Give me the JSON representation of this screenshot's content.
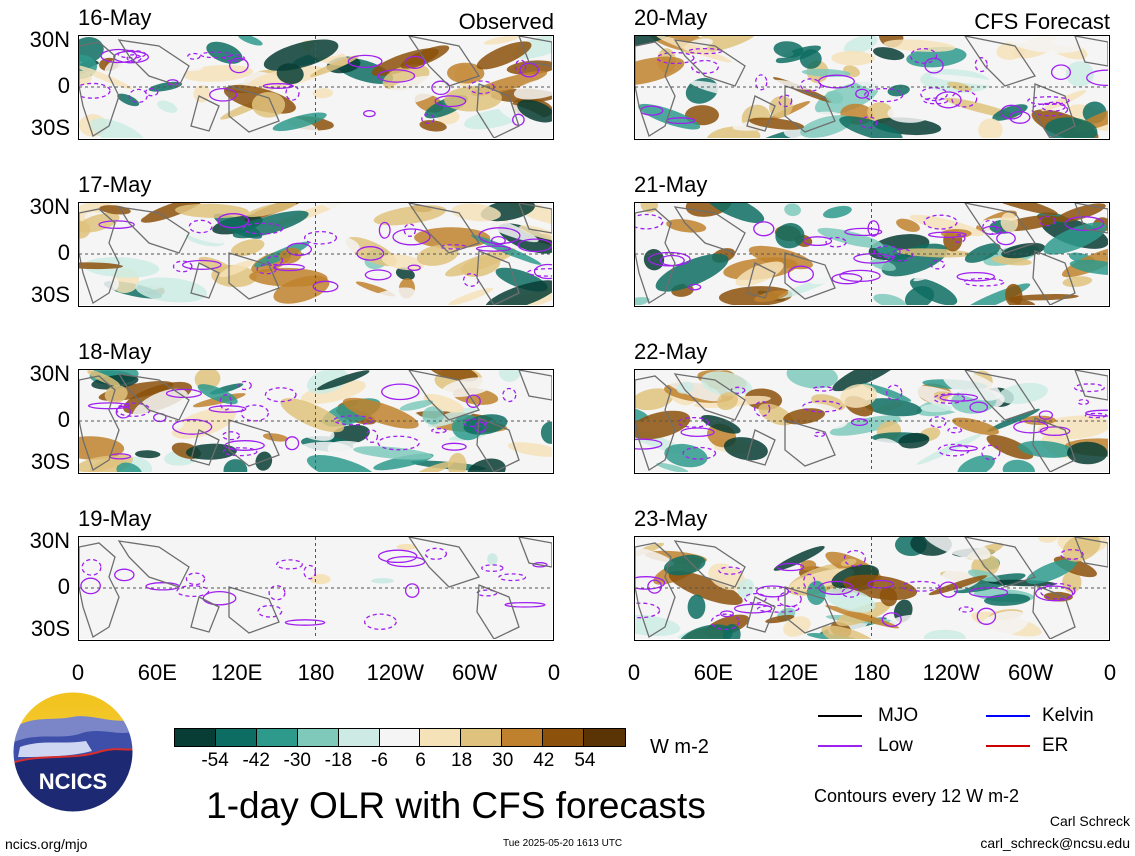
{
  "chart_data": {
    "type": "heatmap",
    "title": "1-day OLR with CFS forecasts",
    "colorbar": {
      "unit": "W m-2",
      "tick_labels": [
        "-54",
        "-42",
        "-30",
        "-18",
        "-6",
        "6",
        "18",
        "30",
        "42",
        "54"
      ],
      "colors": [
        "#073d35",
        "#0e6d62",
        "#2e9a8c",
        "#7fc9bb",
        "#cdebe4",
        "#f5f5f5",
        "#f6e2b8",
        "#dfc27d",
        "#bf812d",
        "#8c510a",
        "#5a3405"
      ]
    },
    "x_tick_labels": [
      "0",
      "60E",
      "120E",
      "180",
      "120W",
      "60W",
      "0"
    ],
    "y_tick_labels": [
      "30N",
      "0",
      "30S"
    ],
    "left_column_tag": "Observed",
    "right_column_tag": "CFS Forecast",
    "observed_panels": [
      {
        "date": "16-May"
      },
      {
        "date": "17-May"
      },
      {
        "date": "18-May"
      },
      {
        "date": "19-May"
      }
    ],
    "forecast_panels": [
      {
        "date": "20-May"
      },
      {
        "date": "21-May"
      },
      {
        "date": "22-May"
      },
      {
        "date": "23-May"
      }
    ],
    "contour_legend": [
      {
        "name": "MJO",
        "color": "#000000"
      },
      {
        "name": "Kelvin",
        "color": "#0000ff"
      },
      {
        "name": "Low",
        "color": "#a020f0"
      },
      {
        "name": "ER",
        "color": "#cc0000"
      }
    ],
    "contour_note": "Contours every 12 W m-2"
  },
  "footer": {
    "logo_text": "NCICS",
    "site": "ncics.org/mjo",
    "timestamp": "Tue 2025-05-20 1613 UTC",
    "author": "Carl Schreck",
    "email": "carl_schreck@ncsu.edu"
  }
}
